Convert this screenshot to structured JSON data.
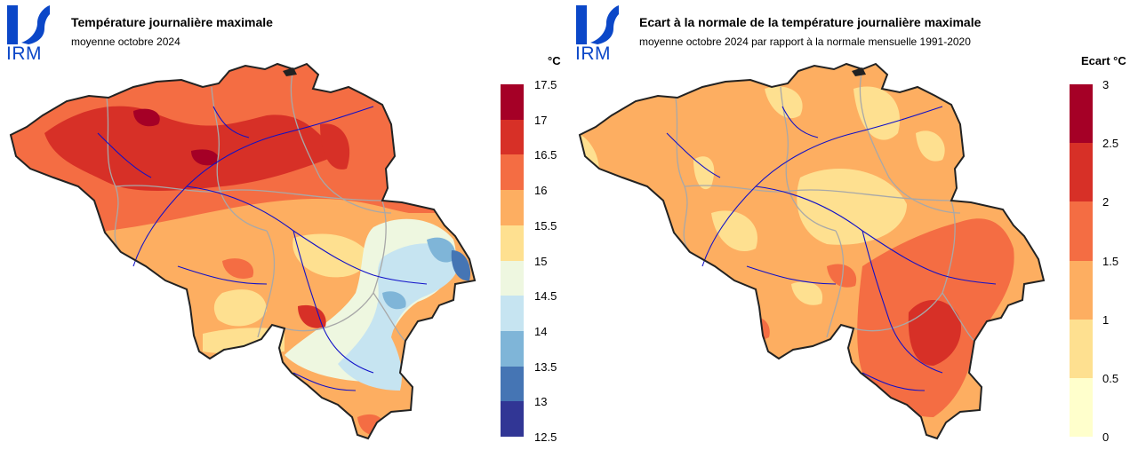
{
  "panels": [
    {
      "id": "left",
      "logo_text": "IRM",
      "title": "Température journalière maximale",
      "subtitle": "moyenne octobre 2024",
      "unit": "°C",
      "scale": {
        "ticks": [
          "17.5",
          "17",
          "16.5",
          "16",
          "15.5",
          "15",
          "14.5",
          "14",
          "13.5",
          "13",
          "12.5"
        ],
        "colors": [
          "#a50026",
          "#d73027",
          "#f46d43",
          "#fdae61",
          "#fee090",
          "#eef7e0",
          "#c6e4f1",
          "#7fb5d8",
          "#4575b4",
          "#313695"
        ]
      }
    },
    {
      "id": "right",
      "logo_text": "IRM",
      "title": "Ecart à la normale de la température journalière maximale",
      "subtitle": "moyenne octobre 2024 par rapport à la normale mensuelle 1991-2020",
      "unit": "Ecart °C",
      "scale": {
        "ticks": [
          "3",
          "2.5",
          "2",
          "1.5",
          "1",
          "0.5",
          "0"
        ],
        "colors": [
          "#a50026",
          "#d73027",
          "#f46d43",
          "#fdae61",
          "#fee090",
          "#ffffcc"
        ]
      }
    }
  ],
  "colors": {
    "logo": "#0b47c8",
    "border": "#222222",
    "rivers": "#1010c8",
    "provinces": "#a8a8a8"
  }
}
